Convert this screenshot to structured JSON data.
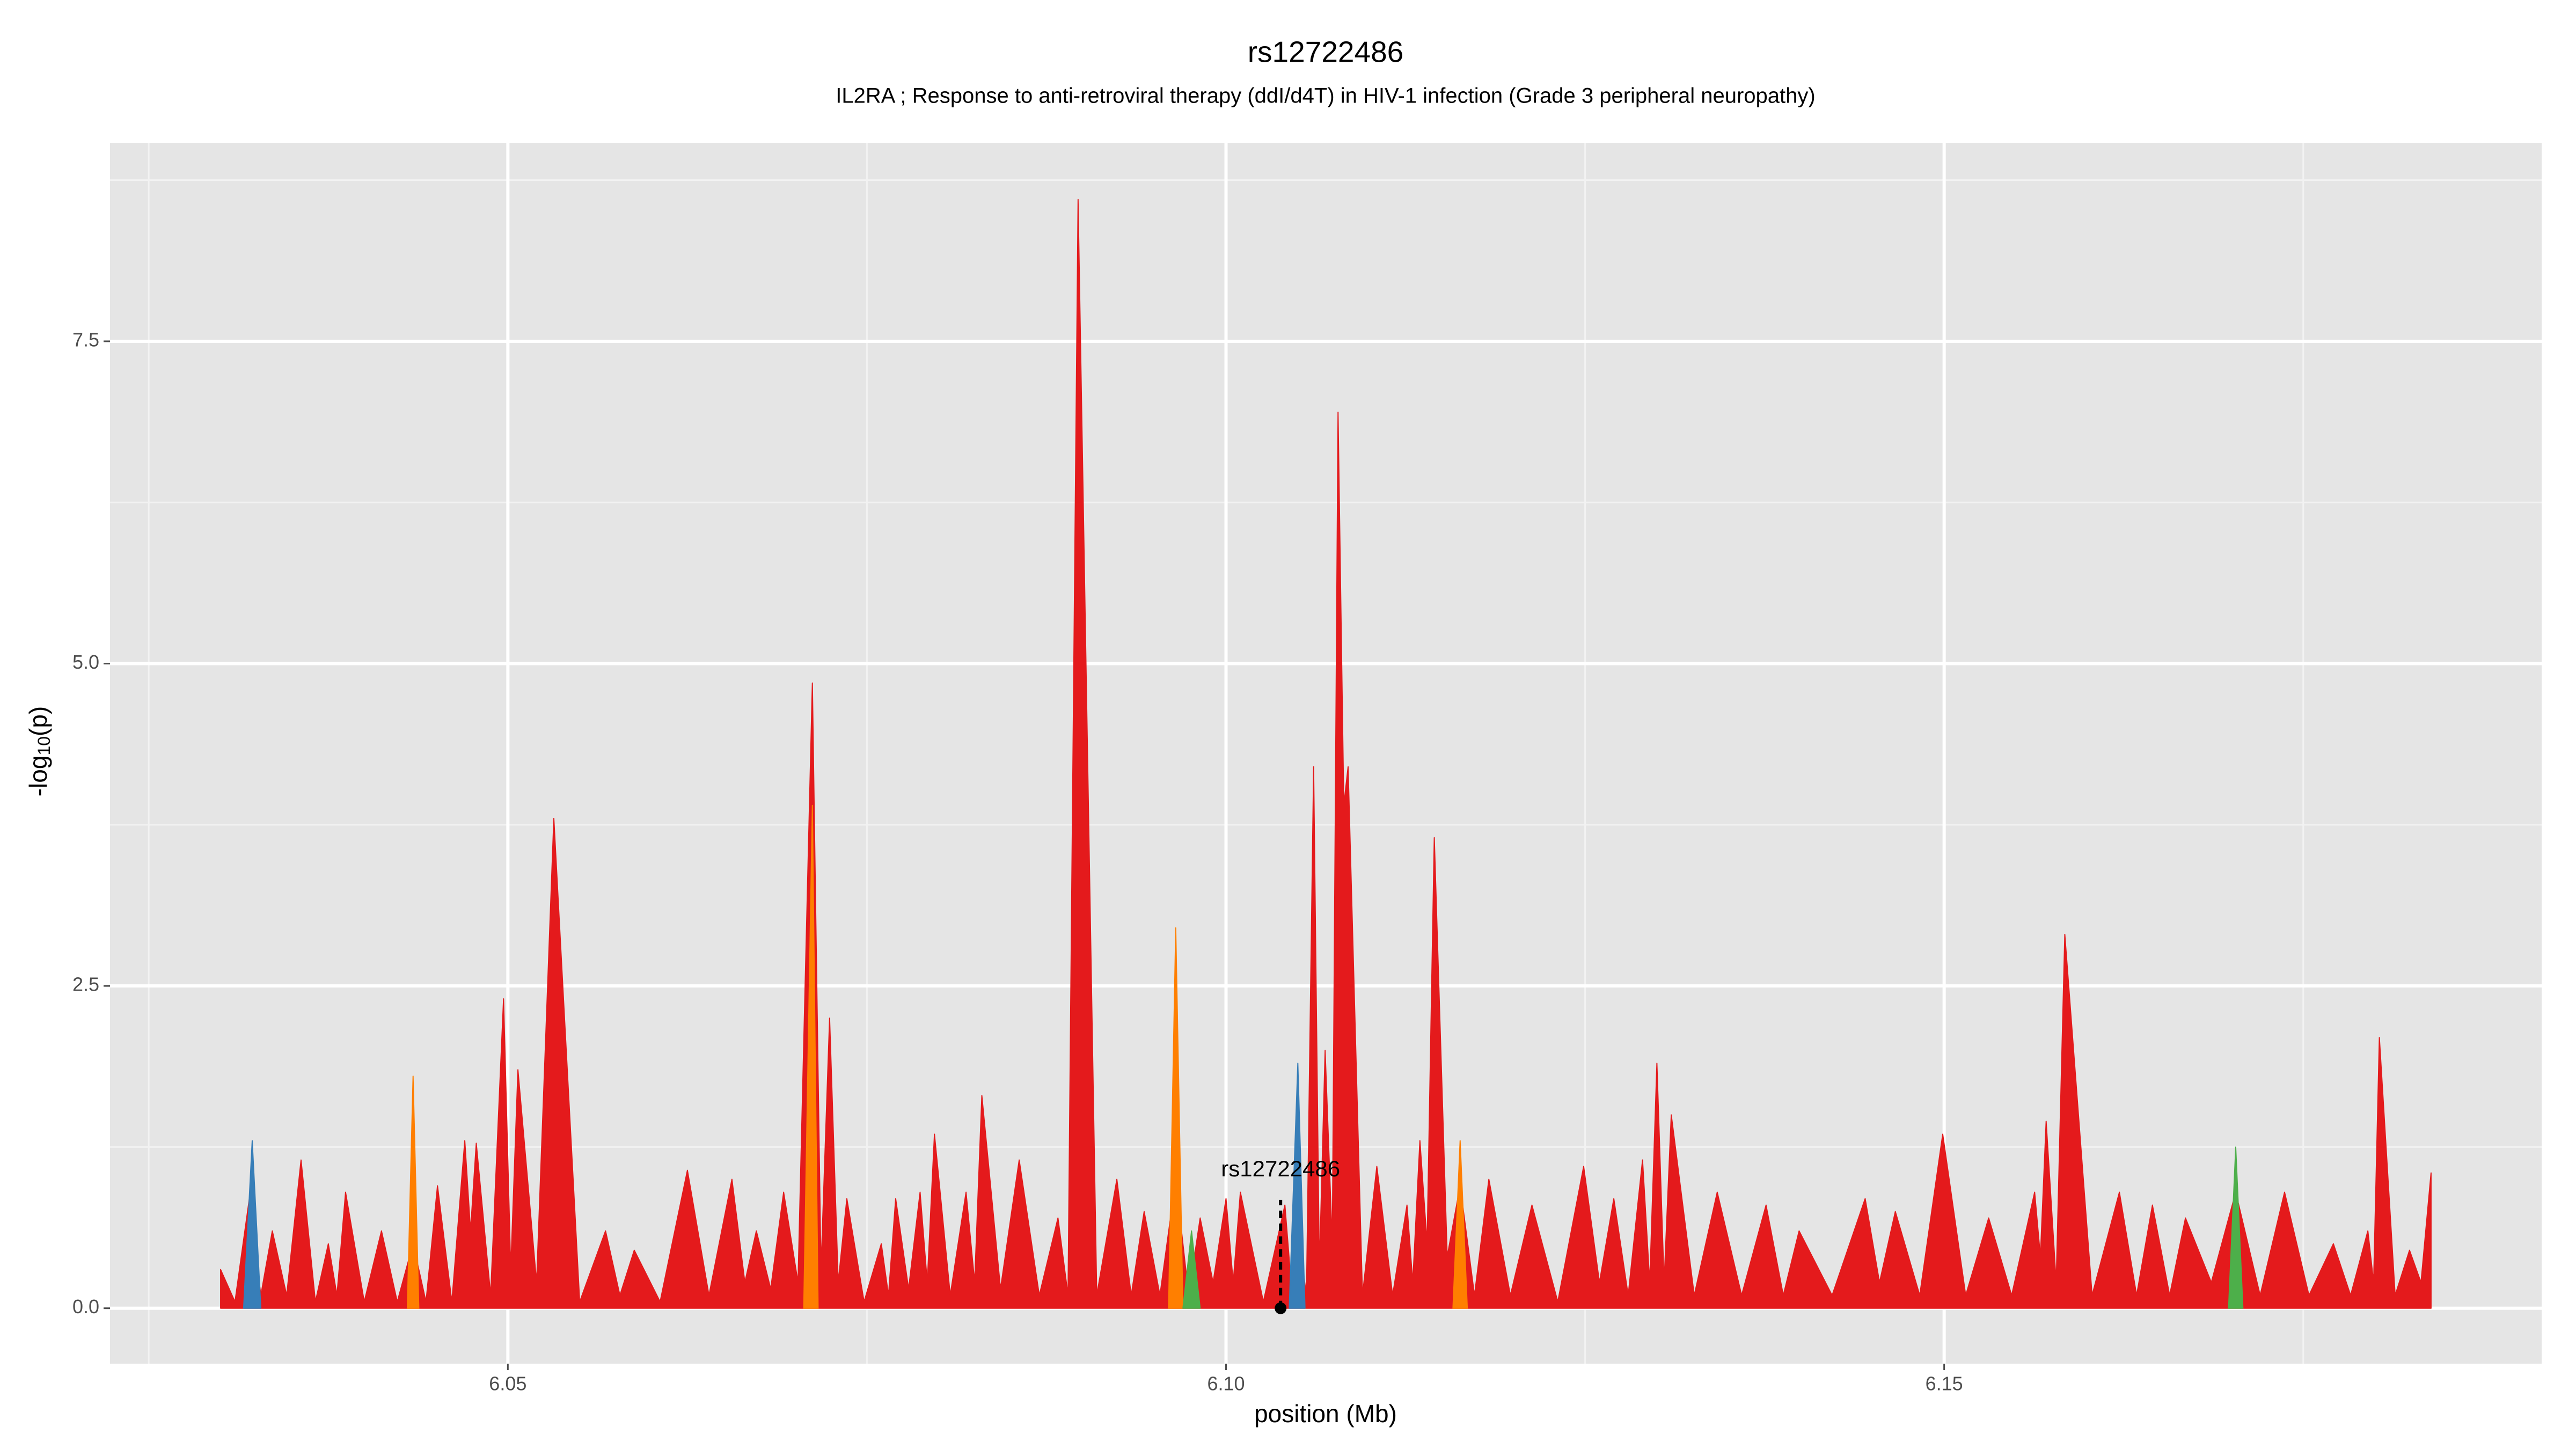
{
  "chart_data": {
    "type": "area",
    "title": "rs12722486",
    "subtitle": "IL2RA ; Response to anti-retroviral therapy (ddI/d4T) in HIV-1 infection (Grade 3 peripheral neuropathy)",
    "xlabel": "position (Mb)",
    "ylabel": {
      "prefix": "-log",
      "sub": "10",
      "suffix": "(p)"
    },
    "xlim": [
      6.0223,
      6.1916
    ],
    "ylim": [
      -0.43,
      9.04
    ],
    "xticks": [
      {
        "value": 6.05,
        "label": "6.05"
      },
      {
        "value": 6.1,
        "label": "6.10"
      },
      {
        "value": 6.15,
        "label": "6.15"
      }
    ],
    "yticks": [
      {
        "value": 0,
        "label": "0.0"
      },
      {
        "value": 2.5,
        "label": "2.5"
      },
      {
        "value": 5,
        "label": "5.0"
      },
      {
        "value": 7.5,
        "label": "7.5"
      }
    ],
    "minor_xticks": [
      6.025,
      6.075,
      6.125,
      6.175
    ],
    "minor_yticks": [
      1.25,
      3.75,
      6.25,
      8.75
    ],
    "grid": true,
    "series": [
      {
        "color": "#e41a1c",
        "x": [
          6.03,
          6.031,
          6.032,
          6.0328,
          6.0336,
          6.0346,
          6.0356,
          6.0366,
          6.0375,
          6.0381,
          6.0387,
          6.04,
          6.0412,
          6.0423,
          6.0434,
          6.0443,
          6.0451,
          6.0461,
          6.047,
          6.0474,
          6.0478,
          6.0488,
          6.0497,
          6.0502,
          6.0507,
          6.052,
          6.0532,
          6.055,
          6.0568,
          6.0578,
          6.0588,
          6.0606,
          6.0625,
          6.064,
          6.0656,
          6.0665,
          6.0673,
          6.0683,
          6.0692,
          6.0702,
          6.0712,
          6.0718,
          6.0724,
          6.073,
          6.0736,
          6.0748,
          6.076,
          6.0765,
          6.077,
          6.0779,
          6.0787,
          6.0792,
          6.0797,
          6.0808,
          6.0819,
          6.0825,
          6.083,
          6.0843,
          6.0856,
          6.087,
          6.0883,
          6.089,
          6.0897,
          6.091,
          6.0924,
          6.0934,
          6.0943,
          6.0954,
          6.0965,
          6.0974,
          6.0982,
          6.0991,
          6.1,
          6.1005,
          6.101,
          6.1026,
          6.1041,
          6.1046,
          6.105,
          6.1056,
          6.1061,
          6.1065,
          6.1069,
          6.1074,
          6.1078,
          6.1082,
          6.1085,
          6.1095,
          6.1105,
          6.1116,
          6.1126,
          6.113,
          6.1135,
          6.114,
          6.1145,
          6.1154,
          6.1163,
          6.1173,
          6.1183,
          6.1198,
          6.1213,
          6.1231,
          6.1249,
          6.126,
          6.127,
          6.128,
          6.129,
          6.1295,
          6.13,
          6.1305,
          6.131,
          6.1326,
          6.1342,
          6.1359,
          6.1376,
          6.1388,
          6.1399,
          6.1422,
          6.1445,
          6.1455,
          6.1466,
          6.1483,
          6.1499,
          6.1515,
          6.1531,
          6.1547,
          6.1563,
          6.1567,
          6.1571,
          6.1578,
          6.1584,
          6.1603,
          6.1622,
          6.1634,
          6.1645,
          6.1657,
          6.1668,
          6.1686,
          6.1703,
          6.172,
          6.1737,
          6.1754,
          6.1771,
          6.1783,
          6.1795,
          6.1799,
          6.1803,
          6.1814,
          6.1824,
          6.1832,
          6.1839
        ],
        "values": [
          0.3,
          0.05,
          0.85,
          0.1,
          0.6,
          0.1,
          1.15,
          0.05,
          0.5,
          0.1,
          0.9,
          0.05,
          0.6,
          0.05,
          0.5,
          0.05,
          0.95,
          0.05,
          1.3,
          0.6,
          1.28,
          0.1,
          2.4,
          0.3,
          1.85,
          0.2,
          3.8,
          0.05,
          0.6,
          0.1,
          0.45,
          0.05,
          1.07,
          0.1,
          1.0,
          0.2,
          0.6,
          0.15,
          0.9,
          0.2,
          4.85,
          0.3,
          2.25,
          0.2,
          0.85,
          0.05,
          0.5,
          0.1,
          0.85,
          0.15,
          0.9,
          0.2,
          1.35,
          0.1,
          0.9,
          0.2,
          1.65,
          0.15,
          1.15,
          0.1,
          0.7,
          0.1,
          8.6,
          0.1,
          1.0,
          0.1,
          0.75,
          0.1,
          1.0,
          0.1,
          0.7,
          0.2,
          0.85,
          0.2,
          0.9,
          0.05,
          0.8,
          0.1,
          0.6,
          0.1,
          4.2,
          0.3,
          2.0,
          0.5,
          6.95,
          3.9,
          4.2,
          0.1,
          1.1,
          0.1,
          0.8,
          0.2,
          1.3,
          0.5,
          3.65,
          0.4,
          0.95,
          0.1,
          1.0,
          0.1,
          0.8,
          0.05,
          1.1,
          0.2,
          0.85,
          0.1,
          1.15,
          0.2,
          1.9,
          0.2,
          1.5,
          0.1,
          0.9,
          0.1,
          0.8,
          0.1,
          0.6,
          0.1,
          0.85,
          0.2,
          0.75,
          0.1,
          1.35,
          0.1,
          0.7,
          0.1,
          0.9,
          0.4,
          1.45,
          0.2,
          2.9,
          0.1,
          0.9,
          0.1,
          0.8,
          0.1,
          0.7,
          0.2,
          0.9,
          0.1,
          0.9,
          0.1,
          0.5,
          0.1,
          0.6,
          0.2,
          2.1,
          0.1,
          0.45,
          0.2,
          1.05
        ]
      },
      {
        "color": "#ff7f00",
        "x": [
          6.043,
          6.0434,
          6.0438,
          6.0438,
          6.0706,
          6.0712,
          6.0716,
          6.0716,
          6.096,
          6.0965,
          6.097,
          6.097,
          6.1158,
          6.1163,
          6.1168
        ],
        "values": [
          0,
          1.8,
          0,
          null,
          0,
          3.9,
          0,
          null,
          0,
          2.95,
          0,
          null,
          0,
          1.3,
          0
        ]
      },
      {
        "color": "#377eb8",
        "x": [
          6.0316,
          6.0322,
          6.0328,
          6.0328,
          6.1044,
          6.105,
          6.1055
        ],
        "values": [
          0,
          1.3,
          0,
          null,
          0,
          1.9,
          0
        ]
      },
      {
        "color": "#4daf4a",
        "x": [
          6.097,
          6.0976,
          6.0982,
          6.0982,
          6.1698,
          6.1703,
          6.1708
        ],
        "values": [
          0,
          0.6,
          0,
          null,
          0,
          1.25,
          0
        ]
      }
    ],
    "annotation": {
      "text": "rs12722486",
      "x": 6.1038,
      "y": 0,
      "line_top": 0.84
    }
  }
}
